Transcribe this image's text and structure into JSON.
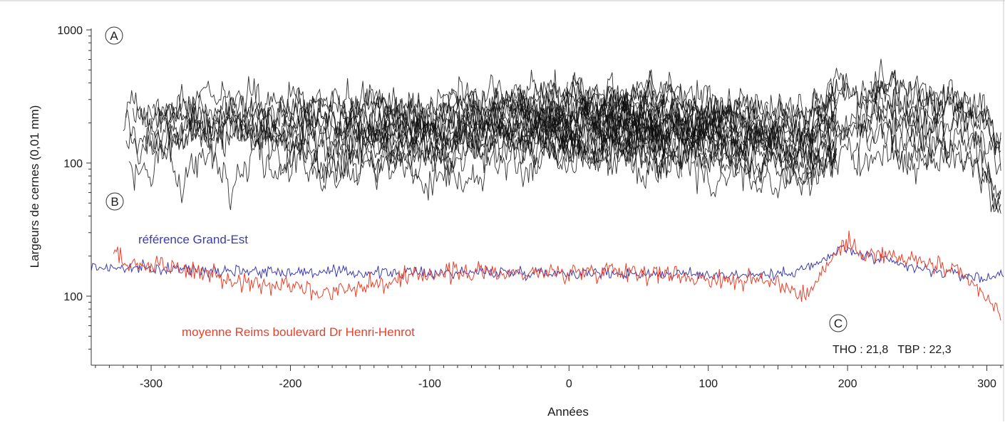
{
  "chart_data": {
    "type": "line",
    "xlabel": "Années",
    "ylabel": "Largeurs de cernes (0,01 mm)",
    "xlim": [
      -343,
      312
    ],
    "xticks": [
      -300,
      -200,
      -100,
      0,
      100,
      200,
      300
    ],
    "xtick_labels": [
      "-300",
      "-200",
      "-100",
      "0",
      "100",
      "200",
      "300"
    ],
    "y_scale": "log",
    "ylim_top_panel": [
      10,
      1000
    ],
    "ytick_labels": [
      "1000",
      "100",
      "100"
    ],
    "grid": false,
    "panel_labels": [
      "A",
      "B",
      "C"
    ],
    "top_panel": {
      "description_series_count": 60,
      "x_range": [
        -325,
        310
      ],
      "typical_y": {
        "early": 130,
        "middle": 170,
        "late_gap_start": 150,
        "end": 60
      },
      "max_y": 800,
      "min_y": 25
    },
    "bottom_panel": {
      "series": [
        {
          "name": "référence Grand-Est",
          "color": "#3b3bb0",
          "x_range": [
            -343,
            312
          ],
          "anchor_x": [
            -340,
            -300,
            -250,
            -200,
            -150,
            -100,
            -50,
            0,
            50,
            100,
            150,
            180,
            195,
            220,
            250,
            280,
            300,
            312
          ],
          "anchor_y": [
            165,
            160,
            158,
            152,
            150,
            150,
            152,
            150,
            148,
            145,
            145,
            175,
            230,
            190,
            160,
            145,
            135,
            150
          ]
        },
        {
          "name": "moyenne Reims boulevard Dr Henri-Henrot",
          "color": "#e8412a",
          "x_range": [
            -327,
            310
          ],
          "anchor_x": [
            -327,
            -310,
            -280,
            -250,
            -220,
            -200,
            -180,
            -150,
            -120,
            -100,
            -50,
            0,
            30,
            60,
            100,
            150,
            170,
            185,
            198,
            215,
            240,
            260,
            280,
            295,
            310
          ],
          "anchor_y": [
            210,
            170,
            165,
            135,
            120,
            130,
            105,
            120,
            130,
            150,
            150,
            150,
            160,
            150,
            135,
            128,
            100,
            170,
            250,
            210,
            190,
            175,
            145,
            110,
            70
          ]
        }
      ],
      "series_labels": [
        "référence Grand-Est",
        "moyenne Reims boulevard Dr Henri-Henrot"
      ]
    },
    "stats_text": "THO : 21,8   TBP : 22,3"
  },
  "colors": {
    "reference": "#3b3bb0",
    "reims": "#e8412a",
    "ensemble": "#0d0d0d",
    "axis": "#333333"
  }
}
